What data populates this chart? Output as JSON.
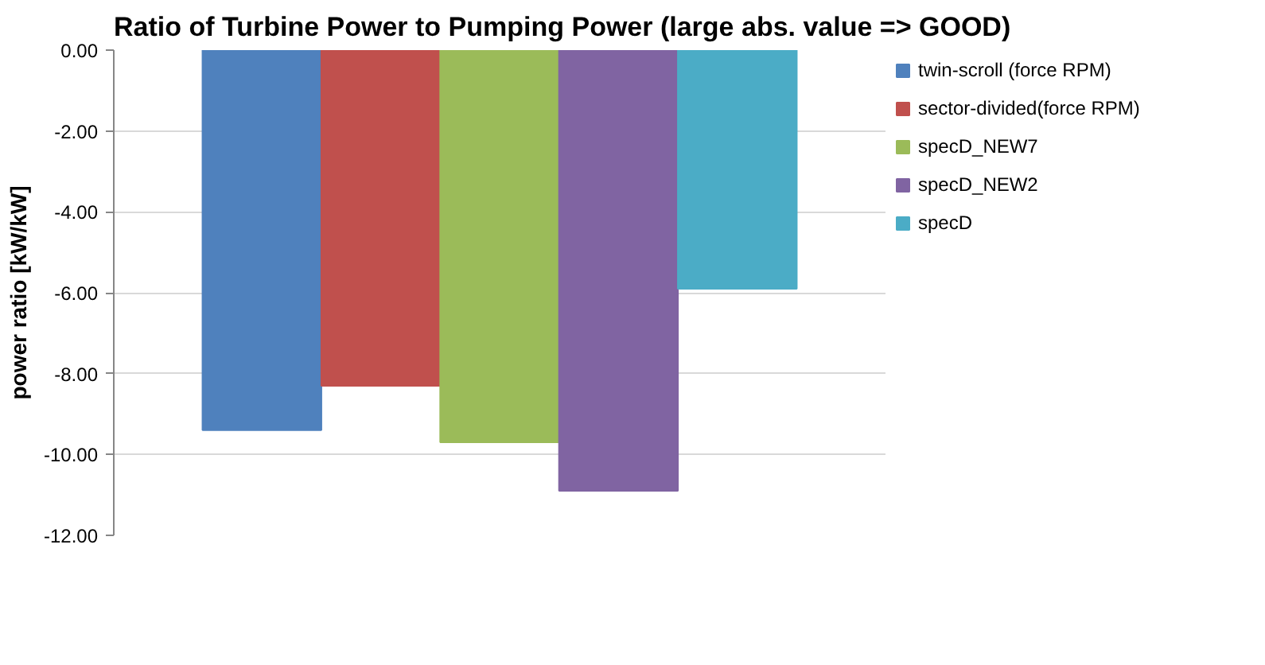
{
  "chart_data": {
    "type": "bar",
    "title": "Ratio of Turbine Power to Pumping Power (large abs. value => GOOD)",
    "ylabel": "power ratio [kW/kW]",
    "categories": [
      null
    ],
    "series": [
      {
        "name": "twin-scroll (force RPM)",
        "color": "#4f81bd",
        "values": [
          -9.4
        ]
      },
      {
        "name": "sector-divided(force RPM)",
        "color": "#c0504d",
        "values": [
          -8.3
        ]
      },
      {
        "name": "specD_NEW7",
        "color": "#9bbb59",
        "values": [
          -9.7
        ]
      },
      {
        "name": "specD_NEW2",
        "color": "#8064a2",
        "values": [
          -10.9
        ]
      },
      {
        "name": "specD",
        "color": "#4bacc6",
        "values": [
          -5.9
        ]
      }
    ],
    "ylim": [
      -12,
      0
    ],
    "yticks": [
      {
        "value": 0,
        "label": "0.00"
      },
      {
        "value": -2,
        "label": "-2.00"
      },
      {
        "value": -4,
        "label": "-4.00"
      },
      {
        "value": -6,
        "label": "-6.00"
      },
      {
        "value": -8,
        "label": "-8.00"
      },
      {
        "value": -10,
        "label": "-10.00"
      },
      {
        "value": -12,
        "label": "-12.00"
      }
    ],
    "grid": "y",
    "legend": "right"
  }
}
